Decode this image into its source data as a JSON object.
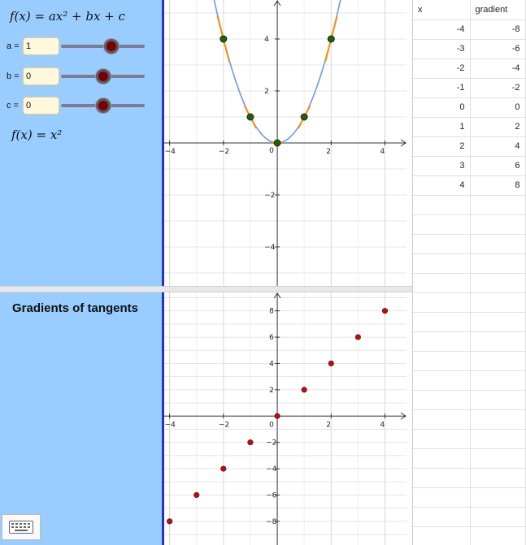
{
  "algebra": {
    "general_formula": "f(x) = ax² + bx + c",
    "current_formula": "f(x) = x²",
    "sliders": [
      {
        "name": "a",
        "label": "a =",
        "value": "1",
        "level": 0.6
      },
      {
        "name": "b",
        "label": "b =",
        "value": "0",
        "level": 0.5
      },
      {
        "name": "c",
        "label": "c =",
        "value": "0",
        "level": 0.5
      }
    ],
    "section_title": "Gradients of tangents"
  },
  "colors": {
    "panel": "#99ccff",
    "curve": "#6699ff",
    "tangent": "#ff8800",
    "point_fill": "#1a6600",
    "gradient_point": "#dd0000"
  },
  "icons": {
    "keyboard": "keyboard-icon"
  },
  "table": {
    "headers": [
      "x",
      "gradient"
    ],
    "rows": [
      [
        "-4",
        "-8"
      ],
      [
        "-3",
        "-6"
      ],
      [
        "-2",
        "-4"
      ],
      [
        "-1",
        "-2"
      ],
      [
        "0",
        "0"
      ],
      [
        "1",
        "2"
      ],
      [
        "2",
        "4"
      ],
      [
        "3",
        "6"
      ],
      [
        "4",
        "8"
      ]
    ],
    "empty_rows": 18
  },
  "chart_data": [
    {
      "type": "line",
      "function": "x^2",
      "xlim": [
        -4.2,
        4.8
      ],
      "ylim": [
        -5.5,
        5.5
      ],
      "x_ticks": [
        "−4",
        "−2",
        "0",
        "2",
        "4"
      ],
      "y_ticks": [
        "−4",
        "−2",
        "2",
        "4"
      ],
      "grid": true,
      "points": [
        {
          "x": -2,
          "y": 4
        },
        {
          "x": -1,
          "y": 1
        },
        {
          "x": 0,
          "y": 0
        },
        {
          "x": 1,
          "y": 1
        },
        {
          "x": 2,
          "y": 4
        }
      ]
    },
    {
      "type": "scatter",
      "xlim": [
        -4.2,
        4.8
      ],
      "ylim": [
        -9.8,
        9.4
      ],
      "x_ticks": [
        "−4",
        "−2",
        "0",
        "2",
        "4"
      ],
      "y_ticks": [
        "8",
        "6",
        "4",
        "2",
        "−2",
        "−4",
        "−6",
        "−8"
      ],
      "grid": true,
      "x": [
        -4,
        -3,
        -2,
        -1,
        0,
        1,
        2,
        3,
        4
      ],
      "y": [
        -8,
        -6,
        -4,
        -2,
        0,
        2,
        4,
        6,
        8
      ]
    }
  ]
}
